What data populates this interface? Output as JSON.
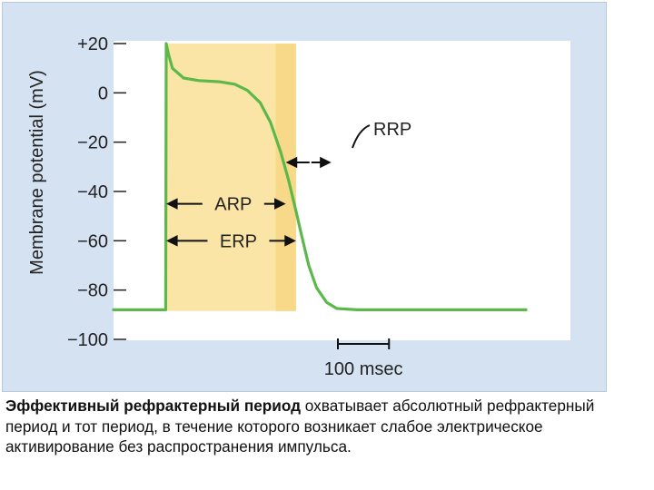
{
  "chart_data": {
    "type": "line",
    "ylabel": "Membrane potential (mV)",
    "ylim": [
      -100,
      20
    ],
    "yticks": [
      20,
      0,
      -20,
      -40,
      -60,
      -80,
      -100
    ],
    "ytick_labels": [
      "+20",
      "0",
      "−20",
      "−40",
      "−60",
      "−80",
      "−100"
    ],
    "xlim_ms": [
      0,
      900
    ],
    "scale_bar": {
      "length_ms": 100,
      "label": "100 msec"
    },
    "series": [
      {
        "color": "#5cb84a",
        "points_ms_mV": [
          [
            0,
            -88
          ],
          [
            95,
            -88
          ],
          [
            96,
            20
          ],
          [
            100,
            16
          ],
          [
            108,
            10
          ],
          [
            130,
            6
          ],
          [
            160,
            5
          ],
          [
            200,
            4.5
          ],
          [
            230,
            3.5
          ],
          [
            255,
            1
          ],
          [
            280,
            -4
          ],
          [
            300,
            -12
          ],
          [
            320,
            -24
          ],
          [
            335,
            -35
          ],
          [
            350,
            -48
          ],
          [
            360,
            -57
          ],
          [
            375,
            -70
          ],
          [
            390,
            -79
          ],
          [
            410,
            -85
          ],
          [
            430,
            -87.5
          ],
          [
            470,
            -88
          ],
          [
            800,
            -88
          ]
        ]
      }
    ],
    "shaded_regions": [
      {
        "name": "ERP",
        "x_ms": [
          96,
          350
        ],
        "y_mV": [
          -88.5,
          20
        ],
        "color": "#fbe5a6"
      },
      {
        "name": "RRP",
        "x_ms": [
          310,
          350
        ],
        "y_mV": [
          -88.5,
          20
        ],
        "color": "#f8d98a"
      }
    ],
    "annotations": [
      {
        "label": "ARP",
        "x_ms": [
          96,
          330
        ],
        "y_mV": -45
      },
      {
        "label": "ERP",
        "x_ms": [
          96,
          350
        ],
        "y_mV": -60
      },
      {
        "label": "RRP",
        "x_ms": [
          330,
          380
        ],
        "y_mV": -27
      }
    ]
  },
  "caption": {
    "bold": "Эффективный рефрактерный период",
    "text": " охватывает абсолютный рефрактерный период и тот период, в течение которого возникает слабое  электрическое активирование без распространения импульса."
  },
  "colors": {
    "panel_bg": "#d5e2f2",
    "plot_bg": "#ffffff",
    "trace": "#5cb84a",
    "shading": "#fbe5a6",
    "rrp_band": "#f8d98a"
  }
}
